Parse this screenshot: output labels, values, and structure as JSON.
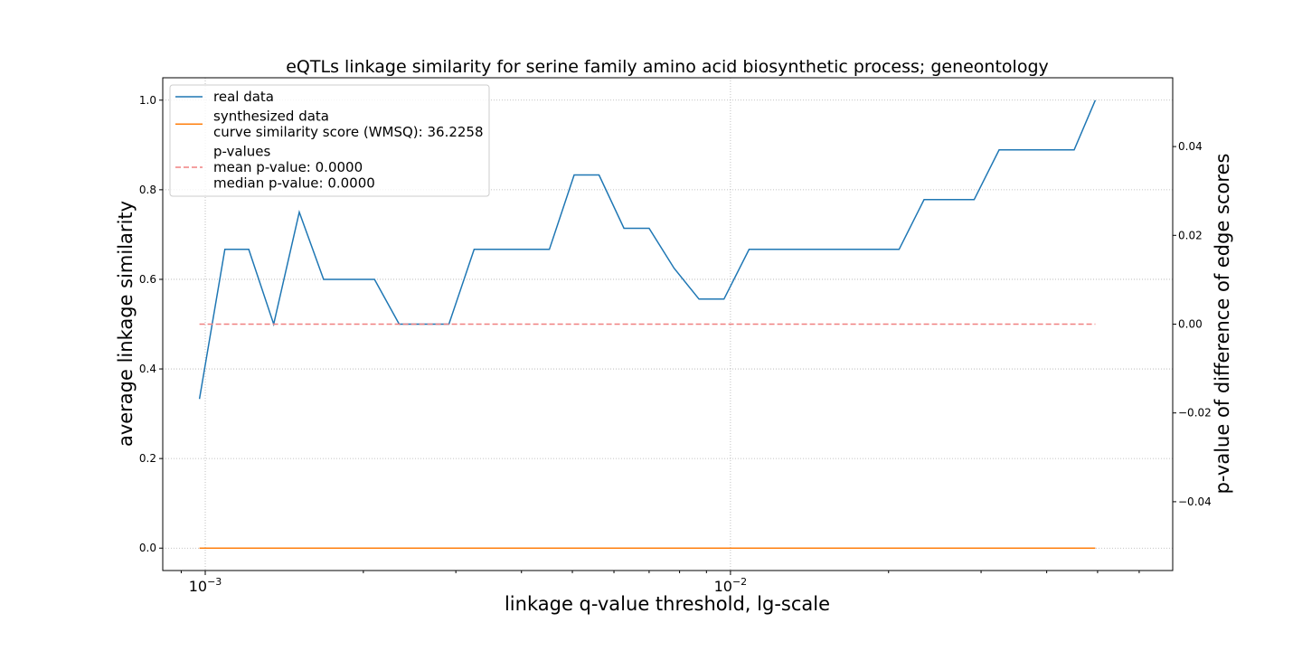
{
  "chart_data": {
    "type": "line",
    "title": "eQTLs linkage similarity for serine family amino acid biosynthetic process; geneontology",
    "xlabel": "linkage q-value threshold, lg-scale",
    "ylabel": "average linkage similarity",
    "y2label": "p-value of difference of edge scores",
    "xscale": "log",
    "xlim": [
      0.00083,
      0.0695
    ],
    "ylim": [
      -0.05,
      1.05
    ],
    "y2lim": [
      -0.0555,
      0.0555
    ],
    "grid": true,
    "legend_placement": "top-left",
    "x_ticks": [
      {
        "value": 0.001,
        "label": "10",
        "exp": "−3"
      },
      {
        "value": 0.01,
        "label": "10",
        "exp": "−2"
      }
    ],
    "y_ticks": [
      {
        "value": 0.0,
        "label": "0.0"
      },
      {
        "value": 0.2,
        "label": "0.2"
      },
      {
        "value": 0.4,
        "label": "0.4"
      },
      {
        "value": 0.6,
        "label": "0.6"
      },
      {
        "value": 0.8,
        "label": "0.8"
      },
      {
        "value": 1.0,
        "label": "1.0"
      }
    ],
    "y2_ticks": [
      {
        "value": -0.04,
        "label": "−0.04"
      },
      {
        "value": -0.02,
        "label": "−0.02"
      },
      {
        "value": 0.0,
        "label": "0.00"
      },
      {
        "value": 0.02,
        "label": "0.02"
      },
      {
        "value": 0.04,
        "label": "0.04"
      }
    ],
    "x": [
      0.000975,
      0.00109,
      0.00121,
      0.00135,
      0.00151,
      0.00168,
      0.00188,
      0.0021,
      0.00234,
      0.00261,
      0.00291,
      0.00325,
      0.00363,
      0.00405,
      0.00452,
      0.00504,
      0.00562,
      0.00627,
      0.007,
      0.00781,
      0.00871,
      0.00972,
      0.01085,
      0.01211,
      0.01351,
      0.01508,
      0.01682,
      0.01877,
      0.02094,
      0.02337,
      0.02608,
      0.0291,
      0.03247,
      0.03623,
      0.04043,
      0.04511,
      0.0495
    ],
    "series": [
      {
        "name": "real data",
        "color": "#1f77b4",
        "axis": "left",
        "style": "solid",
        "values": [
          0.333,
          0.667,
          0.667,
          0.5,
          0.75,
          0.6,
          0.6,
          0.6,
          0.5,
          0.5,
          0.5,
          0.667,
          0.667,
          0.667,
          0.667,
          0.833,
          0.833,
          0.714,
          0.714,
          0.625,
          0.556,
          0.556,
          0.667,
          0.667,
          0.667,
          0.667,
          0.667,
          0.667,
          0.667,
          0.778,
          0.778,
          0.778,
          0.889,
          0.889,
          0.889,
          0.889,
          1.0
        ]
      },
      {
        "name": "synthesized data",
        "color": "#ff7f0e",
        "axis": "left",
        "style": "solid",
        "values": [
          0.0,
          0.0,
          0.0,
          0.0,
          0.0,
          0.0,
          0.0,
          0.0,
          0.0,
          0.0,
          0.0,
          0.0,
          0.0,
          0.0,
          0.0,
          0.0,
          0.0,
          0.0,
          0.0,
          0.0,
          0.0,
          0.0,
          0.0,
          0.0,
          0.0,
          0.0,
          0.0,
          0.0,
          0.0,
          0.0,
          0.0,
          0.0,
          0.0,
          0.0,
          0.0,
          0.0,
          0.0
        ]
      },
      {
        "name": "p-values",
        "color": "#f08080",
        "axis": "right",
        "style": "dashed",
        "values": [
          0.0,
          0.0,
          0.0,
          0.0,
          0.0,
          0.0,
          0.0,
          0.0,
          0.0,
          0.0,
          0.0,
          0.0,
          0.0,
          0.0,
          0.0,
          0.0,
          0.0,
          0.0,
          0.0,
          0.0,
          0.0,
          0.0,
          0.0,
          0.0,
          0.0,
          0.0,
          0.0,
          0.0,
          0.0,
          0.0,
          0.0,
          0.0,
          0.0,
          0.0,
          0.0,
          0.0,
          0.0
        ]
      }
    ],
    "legend": [
      {
        "color": "#1f77b4",
        "style": "solid",
        "lines": [
          "real data"
        ]
      },
      {
        "color": "#ff7f0e",
        "style": "solid",
        "lines": [
          "synthesized data",
          "curve similarity score (WMSQ): 36.2258"
        ]
      },
      {
        "color": "#f08080",
        "style": "dashed",
        "lines": [
          "p-values",
          "mean p-value: 0.0000",
          "median p-value: 0.0000"
        ]
      }
    ]
  }
}
